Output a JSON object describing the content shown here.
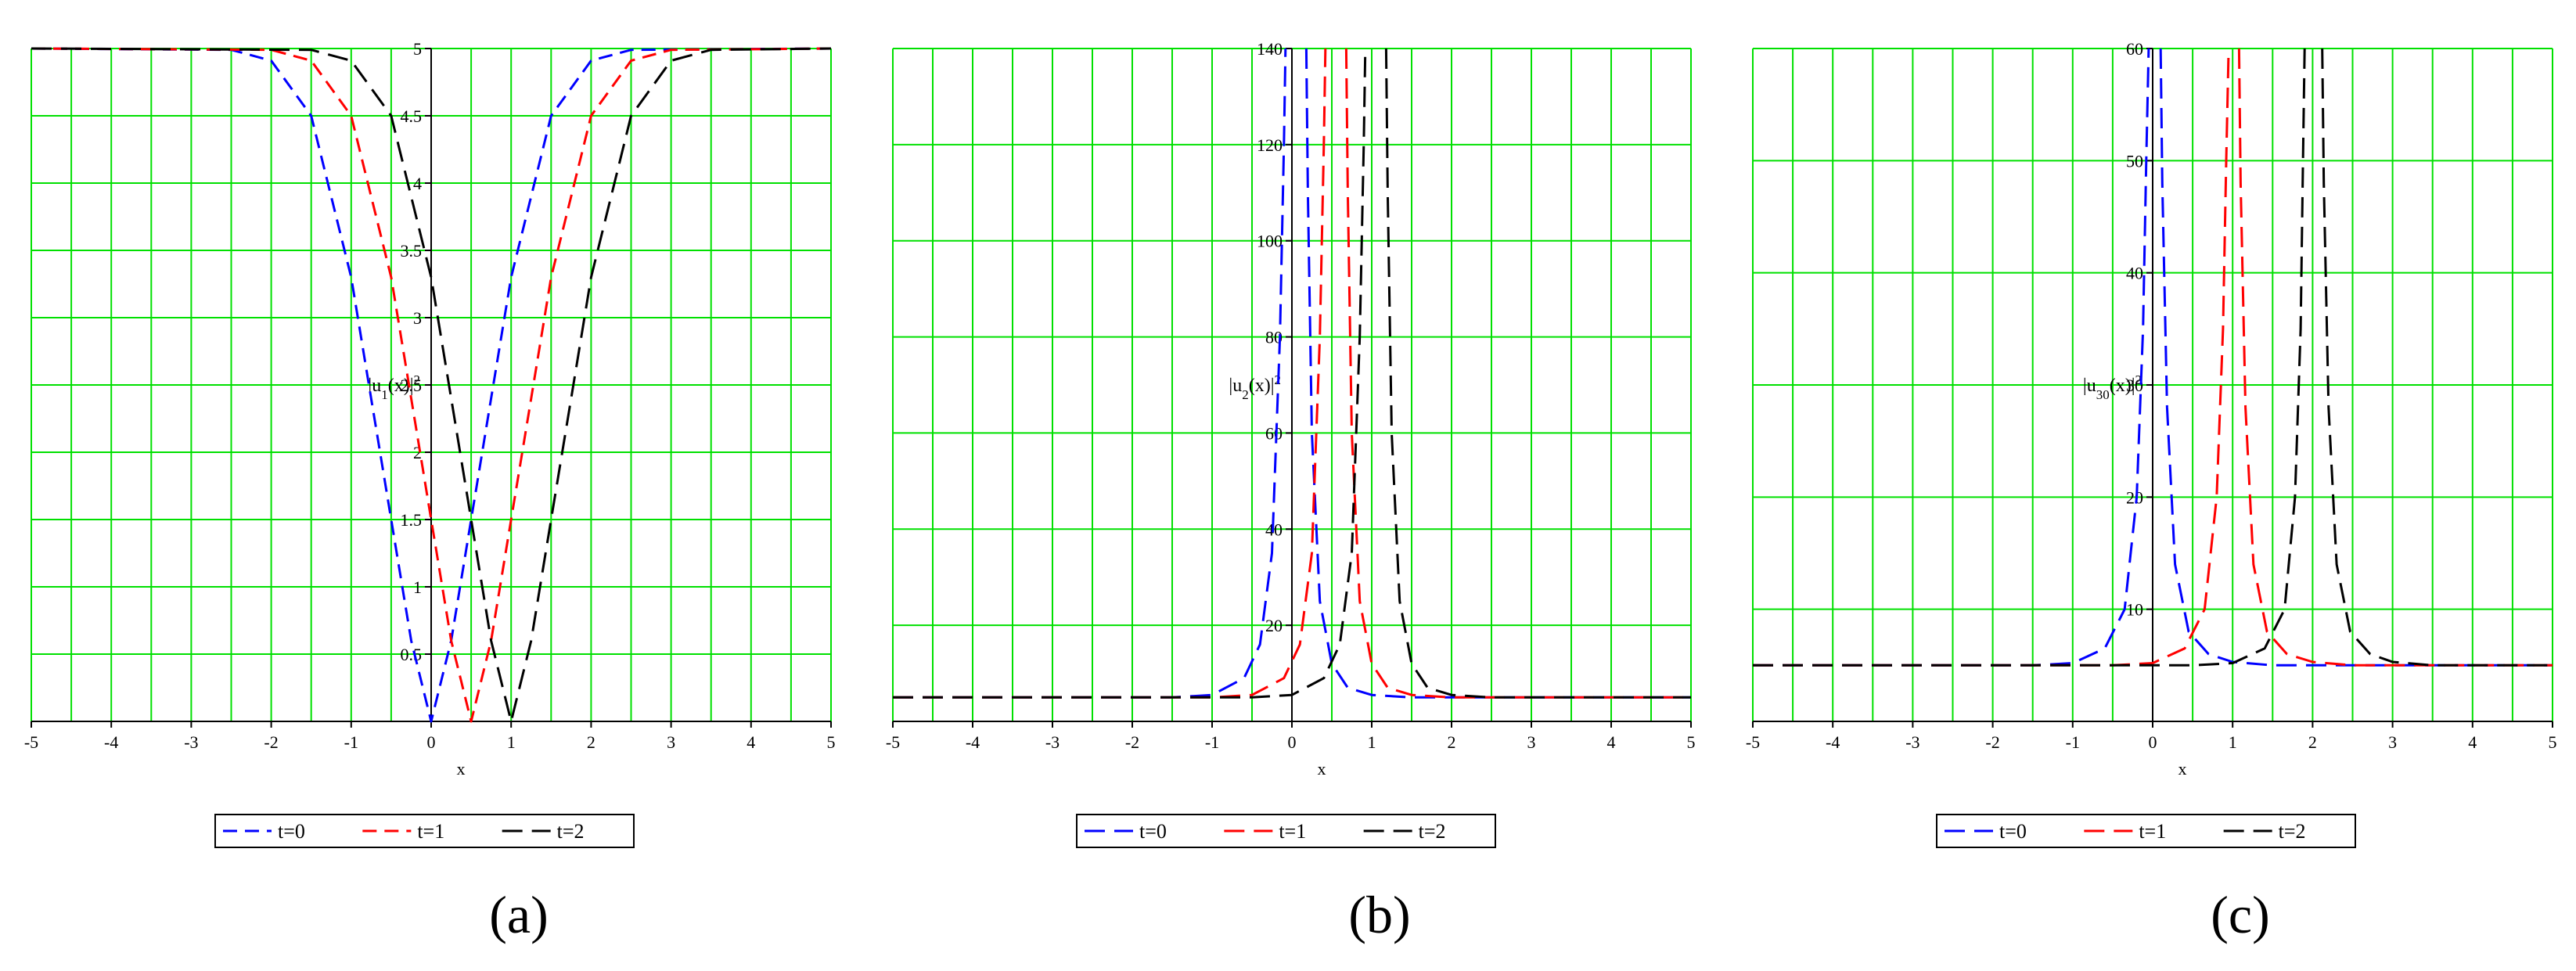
{
  "figure": {
    "panel_labels": [
      "(a)",
      "(b)",
      "(c)"
    ]
  },
  "chart_data": [
    {
      "type": "line",
      "panel": "(a)",
      "xlabel": "x",
      "ylabel_html": "|u<tspan baseline-shift=\"sub\" font-size=\"17\">1</tspan>(x)|<tspan baseline-shift=\"super\" font-size=\"17\">2</tspan>",
      "xlim": [
        -5,
        5
      ],
      "ylim": [
        0,
        5
      ],
      "xticks": [
        -5,
        -4,
        -3,
        -2,
        -1,
        0,
        1,
        2,
        3,
        4,
        5
      ],
      "yticks": [
        0.5,
        1,
        1.5,
        2,
        2.5,
        3,
        3.5,
        4,
        4.5,
        5
      ],
      "ytick_labels": [
        "0.5",
        "1",
        "1.5",
        "2",
        "2.5",
        "3",
        "3.5",
        "4",
        "4.5",
        "5"
      ],
      "grid": true,
      "grid_color": "#00e000",
      "legend_position": "bottom",
      "series": [
        {
          "name": "t=0",
          "color": "#0000ff",
          "dash": "dash",
          "x": [
            -5,
            -2.5,
            -2,
            -1.5,
            -1,
            -0.75,
            -0.5,
            -0.25,
            0,
            0.25,
            0.5,
            0.75,
            1,
            1.5,
            2,
            2.5,
            5
          ],
          "y": [
            5,
            4.99,
            4.91,
            4.5,
            3.3,
            2.4,
            1.5,
            0.6,
            0,
            0.6,
            1.5,
            2.4,
            3.3,
            4.5,
            4.91,
            4.99,
            5
          ]
        },
        {
          "name": "t=1",
          "color": "#ff0000",
          "dash": "dash",
          "x": [
            -5,
            -2,
            -1.5,
            -1,
            -0.5,
            -0.25,
            0,
            0.25,
            0.5,
            0.75,
            1,
            1.25,
            1.5,
            2,
            2.5,
            3,
            5
          ],
          "y": [
            5,
            4.99,
            4.91,
            4.5,
            3.3,
            2.4,
            1.5,
            0.6,
            0,
            0.6,
            1.5,
            2.4,
            3.3,
            4.5,
            4.91,
            4.99,
            5
          ]
        },
        {
          "name": "t=2",
          "color": "#000000",
          "dash": "longdash",
          "x": [
            -5,
            -1.5,
            -1,
            -0.5,
            0,
            0.25,
            0.5,
            0.75,
            1,
            1.25,
            1.5,
            1.75,
            2,
            2.5,
            3,
            3.5,
            5
          ],
          "y": [
            5,
            4.99,
            4.91,
            4.5,
            3.3,
            2.4,
            1.5,
            0.6,
            0,
            0.6,
            1.5,
            2.4,
            3.3,
            4.5,
            4.91,
            4.99,
            5
          ]
        }
      ]
    },
    {
      "type": "line",
      "panel": "(b)",
      "xlabel": "x",
      "ylabel_html": "|u<tspan baseline-shift=\"sub\" font-size=\"17\">2</tspan>(x)|<tspan baseline-shift=\"super\" font-size=\"17\">2</tspan>",
      "xlim": [
        -5,
        5
      ],
      "ylim": [
        0,
        140
      ],
      "xticks": [
        -5,
        -4,
        -3,
        -2,
        -1,
        0,
        1,
        2,
        3,
        4,
        5
      ],
      "yticks": [
        20,
        40,
        60,
        80,
        100,
        120,
        140
      ],
      "ytick_labels": [
        "20",
        "40",
        "60",
        "80",
        "100",
        "120",
        "140"
      ],
      "grid": true,
      "grid_color": "#00e000",
      "legend_position": "bottom",
      "series": [
        {
          "name": "t=0",
          "color": "#0000ff",
          "dash": "longdash",
          "x": [
            -5,
            -1.5,
            -1,
            -0.6,
            -0.4,
            -0.25,
            -0.15,
            -0.1,
            -0.08,
            null,
            0.18,
            0.2,
            0.25,
            0.35,
            0.5,
            0.7,
            1,
            1.5,
            5
          ],
          "y": [
            5,
            5,
            5.5,
            9,
            16,
            35,
            80,
            120,
            140,
            null,
            140,
            110,
            60,
            25,
            12,
            7,
            5.5,
            5,
            5
          ]
        },
        {
          "name": "t=1",
          "color": "#ff0000",
          "dash": "longdash",
          "x": [
            -5,
            -1,
            -0.5,
            -0.1,
            0.1,
            0.25,
            0.35,
            0.4,
            0.42,
            null,
            0.68,
            0.7,
            0.75,
            0.85,
            1,
            1.2,
            1.5,
            2,
            5
          ],
          "y": [
            5,
            5,
            5.5,
            9,
            16,
            35,
            80,
            120,
            140,
            null,
            140,
            110,
            60,
            25,
            12,
            7,
            5.5,
            5,
            5
          ]
        },
        {
          "name": "t=2",
          "color": "#000000",
          "dash": "longdash",
          "x": [
            -5,
            -0.5,
            0,
            0.4,
            0.6,
            0.75,
            0.85,
            0.9,
            0.92,
            null,
            1.18,
            1.2,
            1.25,
            1.35,
            1.5,
            1.7,
            2,
            2.5,
            5
          ],
          "y": [
            5,
            5,
            5.5,
            9,
            16,
            35,
            80,
            120,
            140,
            null,
            140,
            110,
            60,
            25,
            12,
            7,
            5.5,
            5,
            5
          ]
        }
      ]
    },
    {
      "type": "line",
      "panel": "(c)",
      "xlabel": "x",
      "ylabel_html": "|u<tspan baseline-shift=\"sub\" font-size=\"17\">30</tspan>(x)|<tspan baseline-shift=\"super\" font-size=\"17\">2</tspan>",
      "xlim": [
        -5,
        5
      ],
      "ylim": [
        0,
        60
      ],
      "xticks": [
        -5,
        -4,
        -3,
        -2,
        -1,
        0,
        1,
        2,
        3,
        4,
        5
      ],
      "yticks": [
        10,
        20,
        30,
        40,
        50,
        60
      ],
      "ytick_labels": [
        "10",
        "20",
        "30",
        "40",
        "50",
        "60"
      ],
      "grid": true,
      "grid_color": "#00e000",
      "legend_position": "bottom",
      "series": [
        {
          "name": "t=0",
          "color": "#0000ff",
          "dash": "longdash",
          "x": [
            -5,
            -1.5,
            -1,
            -0.6,
            -0.35,
            -0.2,
            -0.12,
            -0.08,
            -0.05,
            null,
            0.1,
            0.12,
            0.18,
            0.28,
            0.45,
            0.7,
            1,
            1.5,
            5
          ],
          "y": [
            5,
            5,
            5.2,
            6.5,
            10,
            20,
            35,
            50,
            60,
            null,
            60,
            48,
            28,
            14,
            8,
            6,
            5.3,
            5,
            5
          ]
        },
        {
          "name": "t=1",
          "color": "#ff0000",
          "dash": "longdash",
          "x": [
            -5,
            -0.5,
            0,
            0.4,
            0.65,
            0.8,
            0.88,
            0.92,
            0.95,
            null,
            1.08,
            1.1,
            1.16,
            1.26,
            1.43,
            1.68,
            2,
            2.5,
            5
          ],
          "y": [
            5,
            5,
            5.2,
            6.5,
            10,
            20,
            35,
            50,
            60,
            null,
            60,
            48,
            28,
            14,
            8,
            6,
            5.3,
            5,
            5
          ]
        },
        {
          "name": "t=2",
          "color": "#000000",
          "dash": "longdash",
          "x": [
            -5,
            0.5,
            1,
            1.4,
            1.65,
            1.78,
            1.85,
            1.88,
            1.9,
            null,
            2.12,
            2.14,
            2.2,
            2.3,
            2.47,
            2.72,
            3,
            3.5,
            5
          ],
          "y": [
            5,
            5,
            5.2,
            6.5,
            10,
            20,
            35,
            50,
            60,
            null,
            60,
            48,
            28,
            14,
            8,
            6,
            5.3,
            5,
            5
          ]
        }
      ]
    }
  ]
}
